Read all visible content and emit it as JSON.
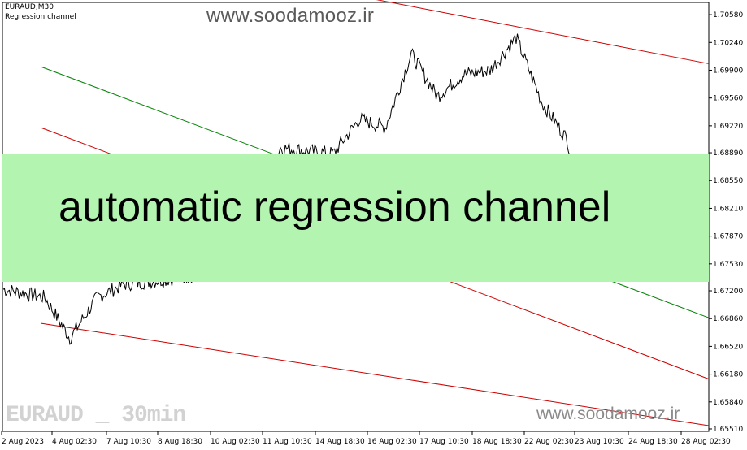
{
  "chart_header": {
    "symbol_timeframe": "EURAUD,M30",
    "indicator": "Regression channel"
  },
  "watermark_top": "www.soodamooz.ir",
  "watermark_bottom": "www.soodamooz.ir",
  "symbol_label": "EURAUD _ 30min",
  "banner": {
    "text": "automatic regression channel",
    "color": "#b3f5b0"
  },
  "colors": {
    "price": "#000000",
    "channel_outer": "#cc0000",
    "channel_center": "#008000",
    "background": "#ffffff"
  },
  "chart_data": {
    "type": "line",
    "symbol": "EURAUD",
    "timeframe": "M30",
    "y_ticks": [
      "1.70580",
      "1.70240",
      "1.69900",
      "1.69560",
      "1.69220",
      "1.68890",
      "1.68550",
      "1.68210",
      "1.67870",
      "1.67530",
      "1.67200",
      "1.66860",
      "1.66520",
      "1.66180",
      "1.65840",
      "1.65510"
    ],
    "x_ticks": [
      "2 Aug 2023",
      "4 Aug 02:30",
      "7 Aug 10:30",
      "8 Aug 18:30",
      "10 Aug 02:30",
      "11 Aug 10:30",
      "14 Aug 18:30",
      "16 Aug 02:30",
      "17 Aug 10:30",
      "18 Aug 18:30",
      "22 Aug 02:30",
      "23 Aug 10:30",
      "24 Aug 18:30",
      "28 Aug 02:30"
    ],
    "ylim": [
      1.6548,
      1.7073
    ],
    "channel_lines": [
      {
        "name": "upper-outer",
        "color": "#cc0000",
        "start": [
          "2 Aug 2023",
          1.7052
        ],
        "end": [
          "28 Aug 02:30",
          1.6998
        ]
      },
      {
        "name": "center",
        "color": "#008000",
        "start": [
          "2 Aug 2023",
          1.6986
        ],
        "end": [
          "28 Aug 02:30",
          1.6687
        ]
      },
      {
        "name": "inner-upper",
        "color": "#cc0000",
        "start": [
          "2 Aug 2023",
          1.6943
        ],
        "end": [
          "28 Aug 02:30",
          1.6612
        ]
      },
      {
        "name": "lower-outer",
        "color": "#cc0000",
        "start": [
          "2 Aug 2023",
          1.6683
        ],
        "end": [
          "28 Aug 02:30",
          1.6555
        ]
      }
    ],
    "price_series": [
      [
        "2 Aug 2023",
        1.6722
      ],
      [
        "3 Aug 2023",
        1.6712
      ],
      [
        "4 Aug 02:30",
        1.6662
      ],
      [
        "4 Aug 16:00",
        1.6712
      ],
      [
        "7 Aug 10:30",
        1.6728
      ],
      [
        "8 Aug 18:30",
        1.6735
      ],
      [
        "10 Aug 02:30",
        1.6745
      ],
      [
        "11 Aug 10:30",
        1.6895
      ],
      [
        "14 Aug 18:30",
        1.6888
      ],
      [
        "15 Aug 12:00",
        1.693
      ],
      [
        "16 Aug 02:30",
        1.692
      ],
      [
        "16 Aug 18:00",
        1.701
      ],
      [
        "17 Aug 10:30",
        1.6958
      ],
      [
        "18 Aug 00:00",
        1.6985
      ],
      [
        "18 Aug 18:30",
        1.699
      ],
      [
        "21 Aug 12:00",
        1.703
      ],
      [
        "22 Aug 02:30",
        1.695
      ],
      [
        "22 Aug 18:00",
        1.6905
      ],
      [
        "23 Aug 10:30",
        1.676
      ]
    ]
  }
}
